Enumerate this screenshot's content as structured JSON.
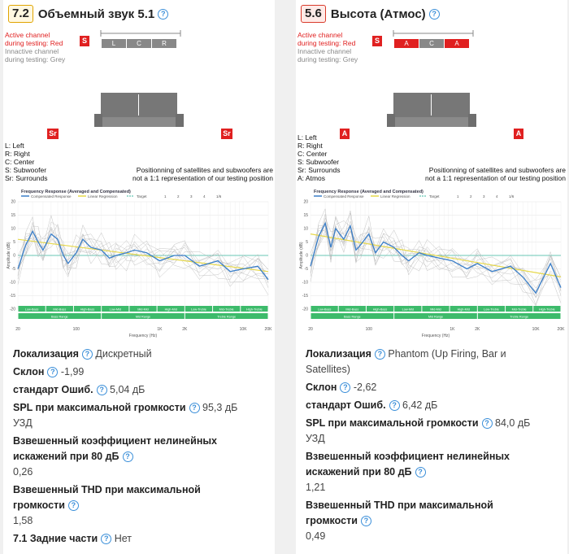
{
  "left": {
    "score": "7.2",
    "title": "Объемный звук 5.1",
    "diagram": {
      "active_line1": "Active channel",
      "active_line2": "during testing: Red",
      "inactive_line1": "Innactive channel",
      "inactive_line2": "during testing: Grey",
      "sub_label": "S",
      "speakers": [
        "L",
        "C",
        "R"
      ],
      "surround_label": "Sr",
      "legend": [
        "L: Left",
        "R: Right",
        "C: Center",
        "S: Subwoofer",
        "Sr: Surrounds"
      ],
      "note_line1": "Positionning of satellites and subwoofers are",
      "note_line2": "not a 1:1 representation of our testing position"
    },
    "stats": {
      "localization_label": "Локализация",
      "localization_value": "Дискретный",
      "slope_label": "Склон",
      "slope_value": "-1,99",
      "stderr_label": "стандарт Ошиб.",
      "stderr_value": "5,04 дБ",
      "spl_label": "SPL при максимальной громкости",
      "spl_value": "95,3 дБ",
      "spl_unit": "УЗД",
      "thd80_label_1": "Взвешенный коэффициент нелинейных",
      "thd80_label_2": "искажений при 80 дБ",
      "thd80_value": "0,26",
      "thdmax_label_1": "Взвешенный THD при максимальной",
      "thdmax_label_2": "громкости",
      "thdmax_value": "1,58",
      "rear_label": "7.1 Задние части",
      "rear_value": "Нет"
    }
  },
  "right": {
    "score": "5.6",
    "title": "Высота (Атмос)",
    "diagram": {
      "active_line1": "Active channel",
      "active_line2": "during testing: Red",
      "inactive_line1": "Innactive channel",
      "inactive_line2": "during testing: Grey",
      "sub_label": "S",
      "speakers": [
        "A",
        "C",
        "A"
      ],
      "surround_label": "A",
      "legend": [
        "L: Left",
        "R: Right",
        "C: Center",
        "S: Subwoofer",
        "Sr: Surrounds",
        "A: Atmos"
      ],
      "note_line1": "Positionning of satellites and subwoofers are",
      "note_line2": "not a 1:1 representation of our testing position"
    },
    "stats": {
      "localization_label": "Локализация",
      "localization_value_1": "Phantom (Up Firing, Bar и",
      "localization_value_2": "Satellites)",
      "slope_label": "Склон",
      "slope_value": "-2,62",
      "stderr_label": "стандарт Ошиб.",
      "stderr_value": "6,42 дБ",
      "spl_label": "SPL при максимальной громкости",
      "spl_value": "84,0 дБ",
      "spl_unit": "УЗД",
      "thd80_label_1": "Взвешенный коэффициент нелинейных",
      "thd80_label_2": "искажений при 80 дБ",
      "thd80_value": "1,21",
      "thdmax_label_1": "Взвешенный THD при максимальной",
      "thdmax_label_2": "громкости",
      "thdmax_value": "0,49"
    }
  },
  "chart_common": {
    "title": "Frequency Response (Averaged and Compensated)",
    "legend": [
      "Compensated Response",
      "Linear Regression",
      "Target",
      "1",
      "2",
      "3",
      "4",
      "1/6"
    ],
    "y_ticks": [
      "20",
      "15",
      "10",
      "5",
      "0",
      "-5",
      "-10",
      "-15",
      "-20"
    ],
    "x_ticks": [
      "20",
      "100",
      "1K",
      "2K",
      "10K",
      "20K"
    ],
    "xlabel": "Frequency (Hz)",
    "ylabel": "Amplitude (dB)",
    "bands_top": [
      "Low-Bass",
      "Mid-Bass",
      "High-Bass",
      "Low-Mid",
      "Mid-Mid",
      "High-Mid",
      "Low-Treble",
      "Mid-Treble",
      "High-Treble"
    ],
    "bands_bottom": [
      "Bass Range",
      "Mid Range",
      "Treble Range"
    ],
    "colors": {
      "response": "#3a7ec8",
      "regression": "#e6d84a",
      "target": "#3cb8a0",
      "band": "#3dbb6b"
    }
  },
  "chart_data": [
    {
      "type": "line",
      "xlabel": "Frequency (Hz)",
      "ylabel": "Amplitude (dB)",
      "ylim": [
        -20,
        20
      ],
      "x_scale": "log",
      "series": [
        {
          "name": "Compensated Response",
          "x": [
            20,
            25,
            30,
            35,
            40,
            50,
            60,
            70,
            80,
            100,
            120,
            150,
            200,
            250,
            300,
            400,
            500,
            700,
            1000,
            1500,
            2000,
            3000,
            5000,
            7000,
            10000,
            15000,
            20000
          ],
          "y": [
            -5,
            4,
            9,
            5,
            2,
            8,
            6,
            0,
            -3,
            1,
            6,
            3,
            2,
            -1,
            0,
            1,
            2,
            1,
            -2,
            0,
            0,
            -4,
            -2,
            -6,
            -5,
            -4,
            -9
          ]
        },
        {
          "name": "Linear Regression",
          "x": [
            20,
            20000
          ],
          "y": [
            6,
            -6
          ]
        }
      ]
    },
    {
      "type": "line",
      "xlabel": "Frequency (Hz)",
      "ylabel": "Amplitude (dB)",
      "ylim": [
        -20,
        20
      ],
      "x_scale": "log",
      "series": [
        {
          "name": "Compensated Response",
          "x": [
            20,
            25,
            30,
            35,
            40,
            50,
            60,
            70,
            80,
            100,
            120,
            150,
            200,
            250,
            300,
            400,
            500,
            700,
            1000,
            1500,
            2000,
            3000,
            5000,
            7000,
            10000,
            15000,
            20000
          ],
          "y": [
            -4,
            7,
            12,
            3,
            10,
            6,
            11,
            2,
            4,
            8,
            1,
            5,
            3,
            0,
            -2,
            1,
            0,
            -1,
            -2,
            -5,
            -3,
            -6,
            -4,
            -8,
            -14,
            -3,
            -12
          ]
        },
        {
          "name": "Linear Regression",
          "x": [
            20,
            20000
          ],
          "y": [
            8,
            -8
          ]
        }
      ]
    }
  ]
}
